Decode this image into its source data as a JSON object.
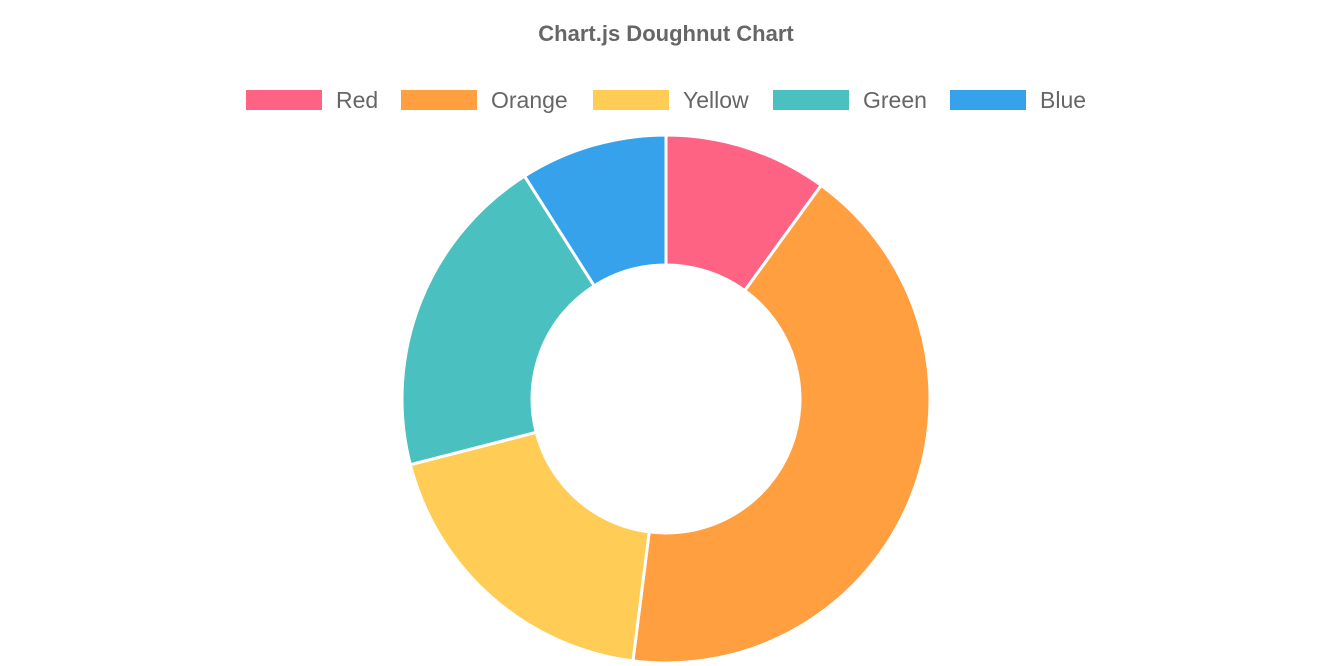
{
  "chart_data": {
    "type": "doughnut",
    "title": "Chart.js Doughnut Chart",
    "legend_position": "top",
    "labels": [
      "Red",
      "Orange",
      "Yellow",
      "Green",
      "Blue"
    ],
    "values": [
      10,
      42,
      19,
      20,
      9
    ],
    "colors": [
      "#ff6384",
      "#ff9f40",
      "#ffcd56",
      "#4bc0c0",
      "#36a2eb"
    ],
    "border_color": "#ffffff"
  }
}
